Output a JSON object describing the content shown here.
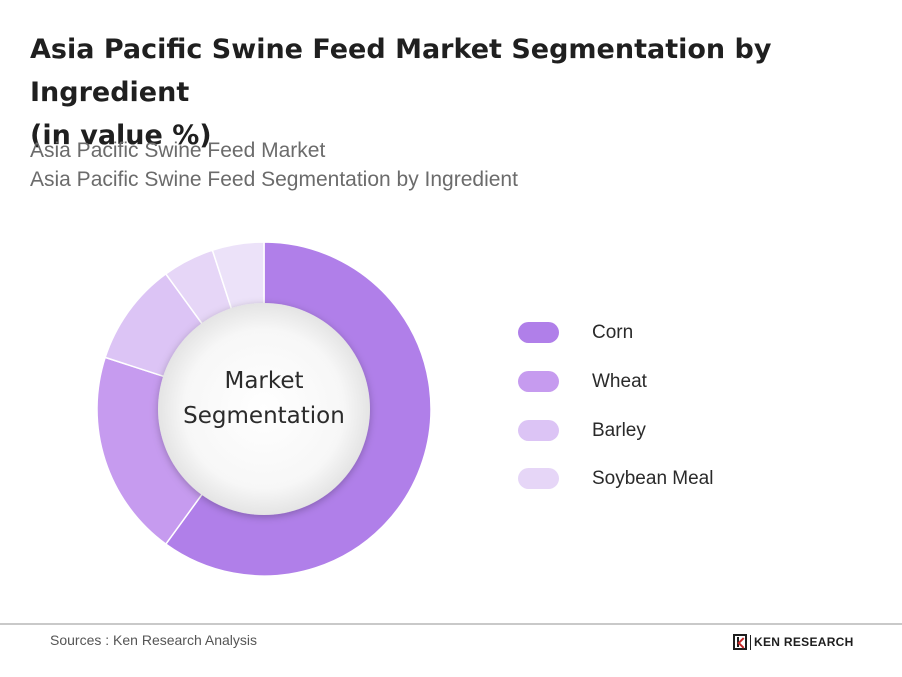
{
  "header": {
    "title_line1": "Asia Pacific Swine Feed Market Segmentation by Ingredient",
    "title_line2": "(in value %)",
    "subtitle_line1": "Asia Pacific Swine Feed Market",
    "subtitle_line2": "Asia Pacific Swine Feed Segmentation by Ingredient"
  },
  "chart_data": {
    "type": "pie",
    "variant": "donut",
    "title": "Asia Pacific Swine Feed Market Segmentation by Ingredient",
    "center_label_line1": "Market",
    "center_label_line2": "Segmentation",
    "legend_position": "right",
    "slices": [
      {
        "name": "Corn",
        "value": 60,
        "color": "#b07fe9"
      },
      {
        "name": "Wheat",
        "value": 20,
        "color": "#c69bef"
      },
      {
        "name": "Barley",
        "value": 10,
        "color": "#dcc4f5"
      },
      {
        "name": "Soybean Meal",
        "value": 5,
        "color": "#e6d6f7"
      },
      {
        "name": "",
        "value": 5,
        "color": "#ece2f9"
      }
    ]
  },
  "legend": {
    "items": [
      {
        "label": "Corn",
        "color": "#b07fe9"
      },
      {
        "label": "Wheat",
        "color": "#c69bef"
      },
      {
        "label": "Barley",
        "color": "#dcc4f5"
      },
      {
        "label": "Soybean Meal",
        "color": "#e6d6f7"
      }
    ]
  },
  "footer": {
    "sources": "Sources : Ken Research Analysis",
    "brand": "KEN RESEARCH"
  }
}
